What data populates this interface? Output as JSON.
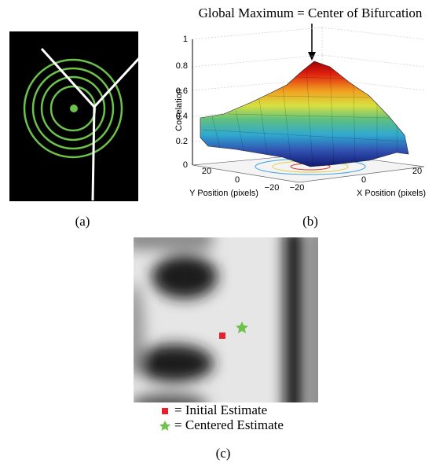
{
  "panels": [
    {
      "label": "(a)"
    },
    {
      "label": "(b)",
      "title": "Global Maximum = Center of Bifurcation",
      "z_axis_label": "Correlation",
      "z_ticks": [
        "0",
        "0.2",
        "0.4",
        "0.6",
        "0.8",
        "1"
      ],
      "y_axis_label": "Y Position (pixels)",
      "y_ticks": [
        "20",
        "0",
        "−20"
      ],
      "x_axis_label": "X Position (pixels)",
      "x_ticks": [
        "−20",
        "0",
        "20"
      ]
    },
    {
      "label": "(c)",
      "legend": [
        "= Initial Estimate",
        "= Centered Estimate"
      ]
    }
  ]
}
